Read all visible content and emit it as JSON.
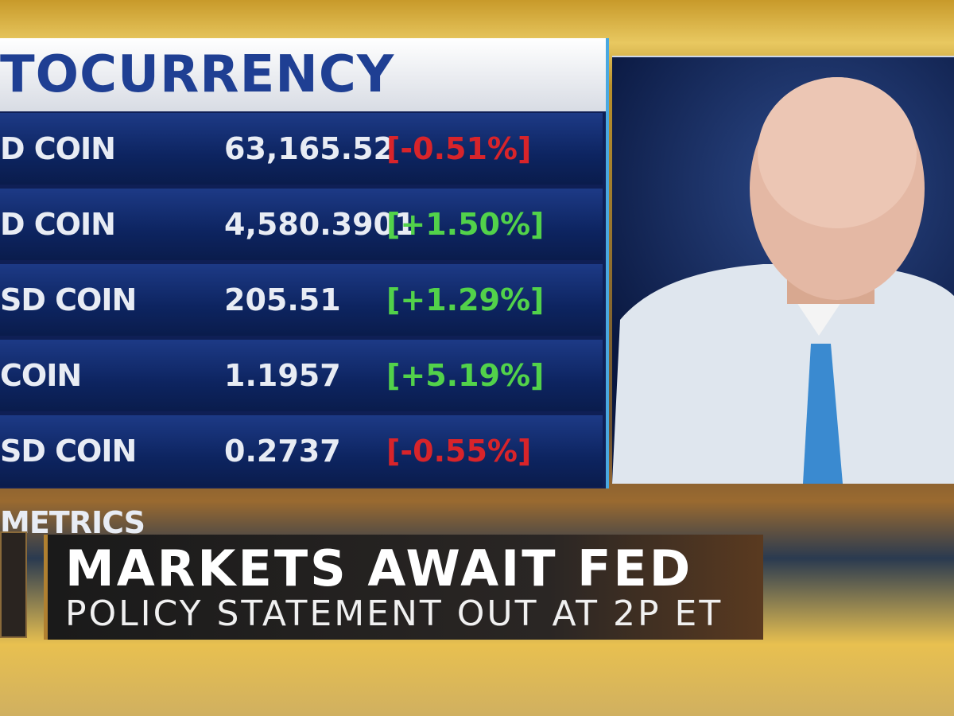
{
  "panel": {
    "title": "TOCURRENCY",
    "rows": [
      {
        "label": "D COIN METRICS",
        "price": "63,165.52",
        "change": "[-0.51%]",
        "color": "#d8242a"
      },
      {
        "label": "D COIN METRICS",
        "price": "4,580.3901",
        "change": "[+1.50%]",
        "color": "#52d24a"
      },
      {
        "label": "SD COIN METRICS",
        "price": "205.51",
        "change": "[+1.29%]",
        "color": "#52d24a"
      },
      {
        "label": "COIN METRICS",
        "price": "1.1957",
        "change": "[+5.19%]",
        "color": "#52d24a"
      },
      {
        "label": "SD COIN METRICS",
        "price": "0.2737",
        "change": "[-0.55%]",
        "color": "#d8242a"
      }
    ]
  },
  "lower_third": {
    "headline": "MARKETS AWAIT FED",
    "subheadline": "POLICY STATEMENT OUT AT 2P ET"
  }
}
